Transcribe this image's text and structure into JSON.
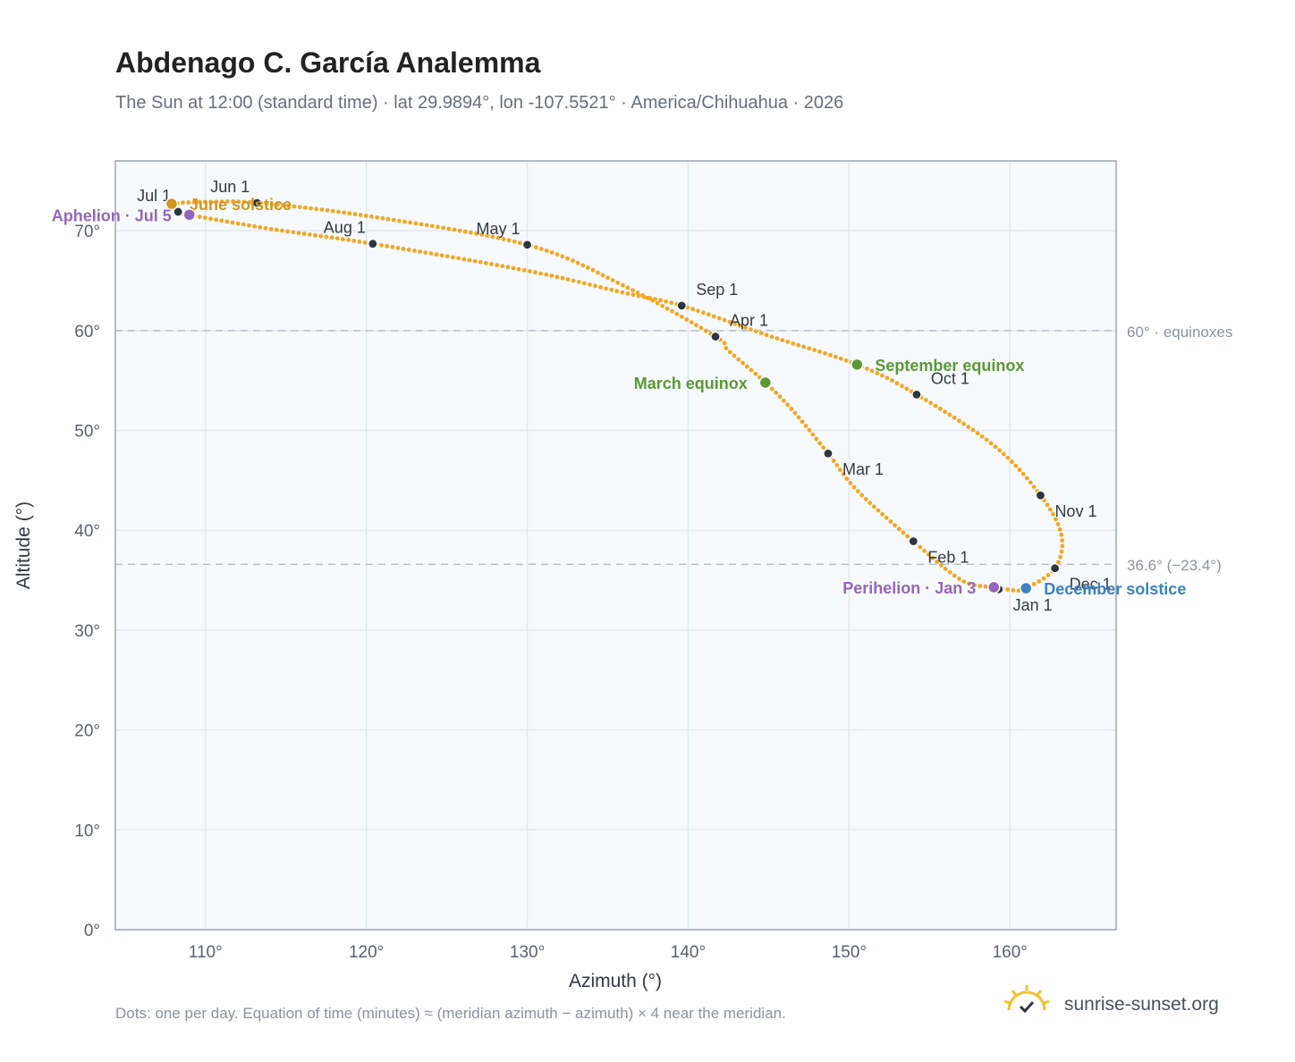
{
  "title": "Abdenago C. García Analemma",
  "subtitle": "The Sun at 12:00 (standard time) · lat 29.9894°, lon -107.5521° · America/Chihuahua · 2026",
  "footnote": "Dots: one per day. Equation of time (minutes) ≈ (meridian azimuth − azimuth) × 4 near the meridian.",
  "brand": "sunrise-sunset.org",
  "colors": {
    "curve": "#f5a623",
    "month_marker": "#2d3540",
    "equinox": "#5a9a36",
    "june_solstice": "#d4961c",
    "december_solstice": "#3b82c4",
    "apsis": "#9467bd",
    "grid": "#e3e8ee",
    "plot_bg": "#f7fafc",
    "plot_border": "#9aa6b4",
    "ref_line": "#b4c0cc"
  },
  "chart_data": {
    "type": "scatter",
    "xlabel": "Azimuth (°)",
    "ylabel": "Altitude (°)",
    "xlim": [
      104.4,
      166.6
    ],
    "ylim": [
      0,
      77
    ],
    "x_ticks": [
      110,
      120,
      130,
      140,
      150,
      160
    ],
    "x_tick_labels": [
      "110°",
      "120°",
      "130°",
      "140°",
      "150°",
      "160°"
    ],
    "y_ticks": [
      0,
      10,
      20,
      30,
      40,
      50,
      60,
      70
    ],
    "y_tick_labels": [
      "0°",
      "10°",
      "20°",
      "30°",
      "40°",
      "50°",
      "60°",
      "70°"
    ],
    "grid": true,
    "reference_lines": [
      {
        "y": 60,
        "label": "60° · equinoxes"
      },
      {
        "y": 36.6,
        "label": "36.6° (−23.4°)"
      }
    ],
    "series": [
      {
        "markers": "one dot per day",
        "path": [
          [
            160.2,
            34.0
          ],
          [
            159.0,
            34.3
          ],
          [
            157.0,
            35.0
          ],
          [
            154.0,
            38.9
          ],
          [
            150.5,
            44.0
          ],
          [
            148.7,
            47.7
          ],
          [
            146.5,
            52.0
          ],
          [
            144.8,
            54.8
          ],
          [
            142.5,
            58.0
          ],
          [
            141.7,
            59.4
          ],
          [
            136.0,
            64.5
          ],
          [
            130.0,
            68.6
          ],
          [
            120.0,
            71.5
          ],
          [
            113.2,
            72.8
          ],
          [
            110.5,
            72.9
          ],
          [
            108.0,
            72.7
          ],
          [
            108.3,
            71.9
          ],
          [
            109.0,
            71.6
          ],
          [
            114.0,
            70.2
          ],
          [
            120.4,
            68.7
          ],
          [
            130.0,
            66.0
          ],
          [
            136.0,
            63.8
          ],
          [
            139.6,
            62.5
          ],
          [
            145.0,
            59.5
          ],
          [
            150.5,
            56.6
          ],
          [
            154.2,
            53.6
          ],
          [
            159.0,
            48.5
          ],
          [
            161.9,
            43.5
          ],
          [
            163.2,
            39.5
          ],
          [
            162.8,
            36.2
          ],
          [
            161.0,
            34.2
          ],
          [
            160.2,
            34.0
          ]
        ]
      }
    ],
    "month_markers": [
      {
        "label": "Jan 1",
        "x": 159.3,
        "y": 34.1,
        "anchor": "below-right"
      },
      {
        "label": "Feb 1",
        "x": 154.0,
        "y": 38.9,
        "anchor": "below-right"
      },
      {
        "label": "Mar 1",
        "x": 148.7,
        "y": 47.7,
        "anchor": "below-right"
      },
      {
        "label": "Apr 1",
        "x": 141.7,
        "y": 59.4,
        "anchor": "above-right"
      },
      {
        "label": "May 1",
        "x": 130.0,
        "y": 68.6,
        "anchor": "above-left"
      },
      {
        "label": "Jun 1",
        "x": 113.2,
        "y": 72.8,
        "anchor": "above-left"
      },
      {
        "label": "Jul 1",
        "x": 108.3,
        "y": 71.9,
        "anchor": "above-left"
      },
      {
        "label": "Aug 1",
        "x": 120.4,
        "y": 68.7,
        "anchor": "above-left"
      },
      {
        "label": "Sep 1",
        "x": 139.6,
        "y": 62.5,
        "anchor": "above-right"
      },
      {
        "label": "Oct 1",
        "x": 154.2,
        "y": 53.6,
        "anchor": "above-right"
      },
      {
        "label": "Nov 1",
        "x": 161.9,
        "y": 43.5,
        "anchor": "below-right"
      },
      {
        "label": "Dec 1",
        "x": 162.8,
        "y": 36.2,
        "anchor": "below-right"
      }
    ],
    "events": [
      {
        "label": "March equinox",
        "x": 144.8,
        "y": 54.8,
        "kind": "equinox",
        "anchor": "left"
      },
      {
        "label": "September equinox",
        "x": 150.5,
        "y": 56.6,
        "kind": "equinox",
        "anchor": "right"
      },
      {
        "label": "June solstice",
        "x": 107.9,
        "y": 72.7,
        "kind": "june_solstice",
        "anchor": "right"
      },
      {
        "label": "December solstice",
        "x": 161.0,
        "y": 34.2,
        "kind": "december_solstice",
        "anchor": "right"
      },
      {
        "label": "Aphelion · Jul 5",
        "x": 109.0,
        "y": 71.6,
        "kind": "apsis",
        "anchor": "left"
      },
      {
        "label": "Perihelion · Jan 3",
        "x": 159.0,
        "y": 34.3,
        "kind": "apsis",
        "anchor": "left"
      }
    ]
  }
}
